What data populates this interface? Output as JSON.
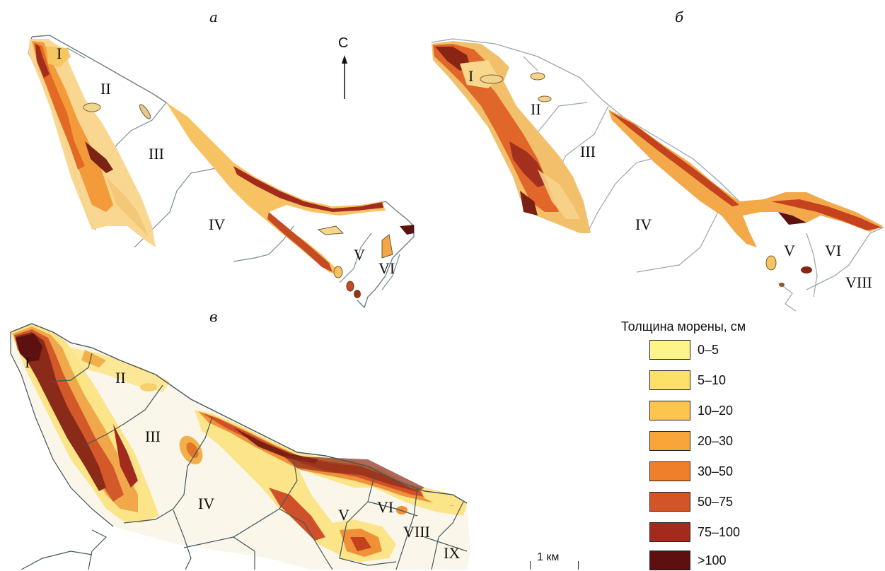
{
  "panels": {
    "a_letter": "а",
    "b_letter": "б",
    "v_letter": "в"
  },
  "north_label": "С",
  "zones": {
    "a": [
      "I",
      "II",
      "III",
      "IV",
      "V",
      "VI"
    ],
    "b": [
      "I",
      "II",
      "III",
      "IV",
      "V",
      "VI",
      "VIII"
    ],
    "v": [
      "I",
      "II",
      "III",
      "IV",
      "V",
      "VI",
      "VIII",
      "IX"
    ]
  },
  "legend": {
    "title": "Толщина морены, см",
    "items": [
      {
        "label": "0–5",
        "color": "#fef48a"
      },
      {
        "label": "5–10",
        "color": "#fde06a"
      },
      {
        "label": "10–20",
        "color": "#fcc54e"
      },
      {
        "label": "20–30",
        "color": "#f8a63a"
      },
      {
        "label": "30–50",
        "color": "#ef7f2a"
      },
      {
        "label": "50–75",
        "color": "#d35427"
      },
      {
        "label": "75–100",
        "color": "#a32b1e"
      },
      {
        "label": ">100",
        "color": "#5c1010"
      }
    ]
  },
  "scale_label": "1 км"
}
